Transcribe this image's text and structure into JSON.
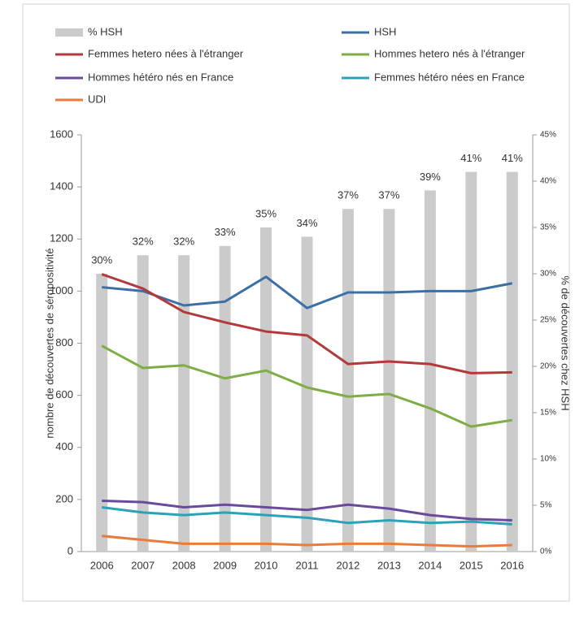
{
  "chart_data": {
    "type": "combo",
    "categories": [
      "2006",
      "2007",
      "2008",
      "2009",
      "2010",
      "2011",
      "2012",
      "2013",
      "2014",
      "2015",
      "2016"
    ],
    "ylabel": "nombre de découvertes de séropositivité",
    "y2label": "% de découvertes chez HSH",
    "ylim": [
      0,
      1600
    ],
    "yticks": [
      0,
      200,
      400,
      600,
      800,
      1000,
      1200,
      1400,
      1600
    ],
    "y2lim": [
      0,
      45
    ],
    "y2ticks": [
      {
        "value": 0,
        "label": "0%"
      },
      {
        "value": 5,
        "label": "5%"
      },
      {
        "value": 10,
        "label": "10%"
      },
      {
        "value": 15,
        "label": "15%"
      },
      {
        "value": 20,
        "label": "20%"
      },
      {
        "value": 25,
        "label": "25%"
      },
      {
        "value": 30,
        "label": "30%"
      },
      {
        "value": 35,
        "label": "35%"
      },
      {
        "value": 40,
        "label": "40%"
      },
      {
        "value": 45,
        "label": "45%"
      }
    ],
    "series": [
      {
        "name": "% HSH",
        "kind": "bar",
        "axis": "y2",
        "color": "#cbcbcb",
        "values": [
          30,
          32,
          32,
          33,
          35,
          34,
          37,
          37,
          39,
          41,
          41
        ],
        "value_labels": [
          "30%",
          "32%",
          "32%",
          "33%",
          "35%",
          "34%",
          "37%",
          "37%",
          "39%",
          "41%",
          "41%"
        ]
      },
      {
        "name": "HSH",
        "kind": "line",
        "color": "#3b6fa8",
        "values": [
          1015,
          1000,
          945,
          960,
          1055,
          935,
          995,
          995,
          1000,
          1000,
          1030
        ]
      },
      {
        "name": "Femmes hetero nées à l'étranger",
        "kind": "line",
        "color": "#b33a3a",
        "values": [
          1065,
          1010,
          920,
          880,
          845,
          830,
          720,
          730,
          720,
          685,
          688
        ]
      },
      {
        "name": "Hommes hetero nés à l'étranger",
        "kind": "line",
        "color": "#7fad45",
        "values": [
          790,
          705,
          715,
          665,
          695,
          630,
          595,
          605,
          550,
          480,
          505
        ]
      },
      {
        "name": "Hommes hétéro nés en France",
        "kind": "line",
        "color": "#6a4a9a",
        "values": [
          195,
          190,
          170,
          180,
          170,
          160,
          180,
          165,
          140,
          125,
          120
        ]
      },
      {
        "name": "Femmes hétéro nées en France",
        "kind": "line",
        "color": "#2aa3b8",
        "values": [
          170,
          150,
          140,
          150,
          140,
          130,
          110,
          120,
          110,
          115,
          105
        ]
      },
      {
        "name": "UDI",
        "kind": "line",
        "color": "#e87c3c",
        "values": [
          60,
          45,
          30,
          30,
          30,
          25,
          30,
          30,
          25,
          20,
          25
        ]
      }
    ]
  }
}
